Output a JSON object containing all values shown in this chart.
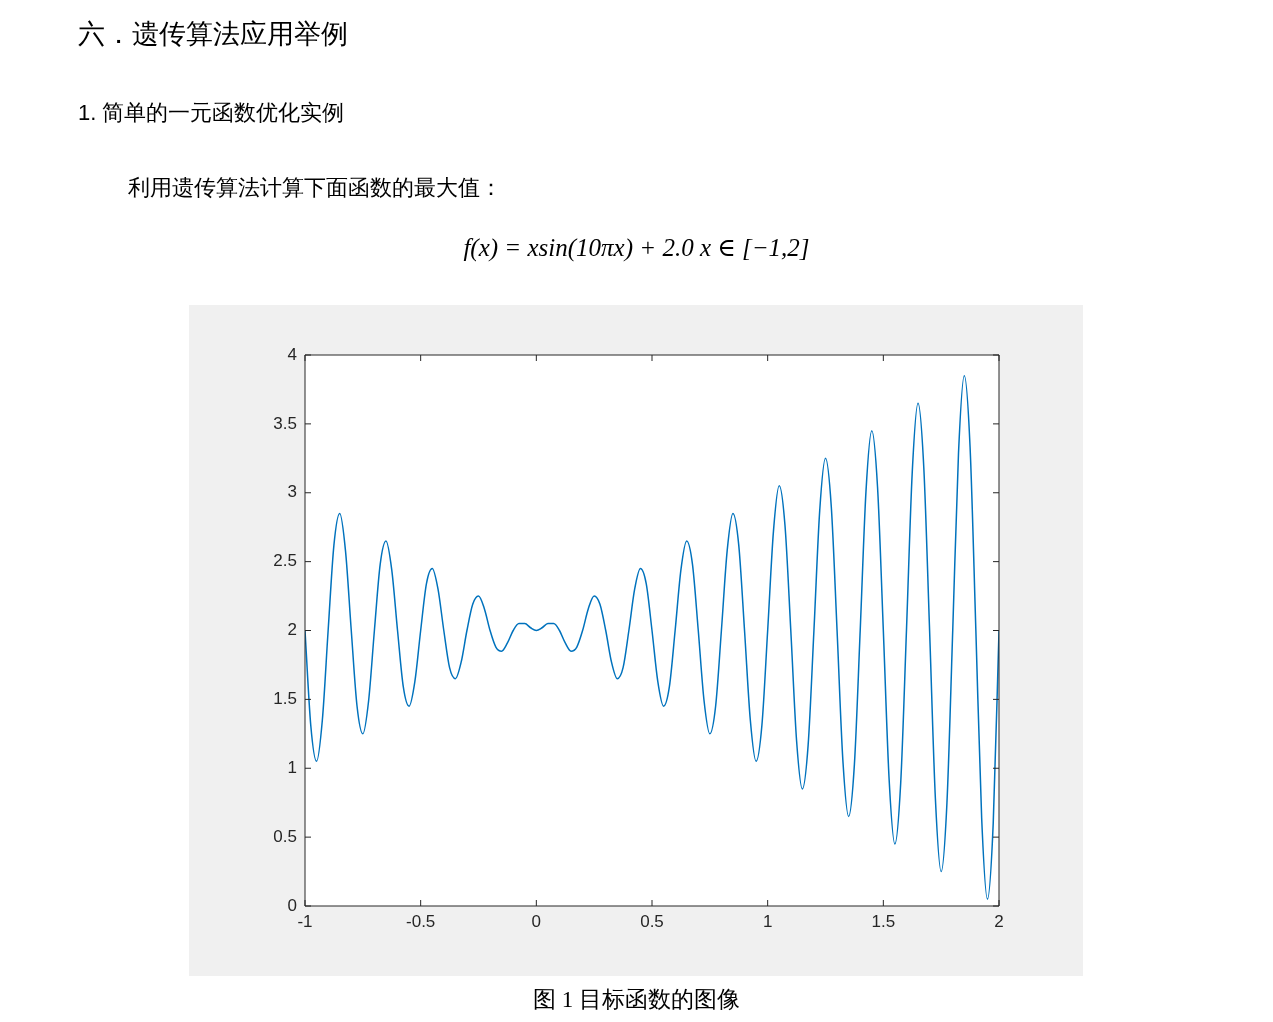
{
  "chart_data": {
    "type": "line",
    "title": "六．遗传算法应用举例",
    "subtitle": "1. 简单的一元函数优化实例",
    "annotations": [
      "利用遗传算法计算下面函数的最大值：",
      "f(x) = xsin(10πx) + 2.0 x ∈ [−1,2]",
      "图 1  目标函数的图像"
    ],
    "x": [
      -1,
      -0.975,
      -0.95,
      -0.925,
      -0.9,
      -0.875,
      -0.85,
      -0.825,
      -0.8,
      -0.775,
      -0.75,
      -0.725,
      -0.7,
      -0.675,
      -0.65,
      -0.625,
      -0.6,
      -0.575,
      -0.55,
      -0.525,
      -0.5,
      -0.475,
      -0.45,
      -0.425,
      -0.4,
      -0.375,
      -0.35,
      -0.325,
      -0.3,
      -0.275,
      -0.25,
      -0.225,
      -0.2,
      -0.175,
      -0.15,
      -0.125,
      -0.1,
      -0.075,
      -0.05,
      -0.025,
      0,
      0.025,
      0.05,
      0.075,
      0.1,
      0.125,
      0.15,
      0.175,
      0.2,
      0.225,
      0.25,
      0.275,
      0.3,
      0.325,
      0.35,
      0.375,
      0.4,
      0.425,
      0.45,
      0.475,
      0.5,
      0.525,
      0.55,
      0.575,
      0.6,
      0.625,
      0.65,
      0.675,
      0.7,
      0.725,
      0.75,
      0.775,
      0.8,
      0.825,
      0.85,
      0.875,
      0.9,
      0.925,
      0.95,
      0.975,
      1,
      1.025,
      1.05,
      1.075,
      1.1,
      1.125,
      1.15,
      1.175,
      1.2,
      1.225,
      1.25,
      1.275,
      1.3,
      1.325,
      1.35,
      1.375,
      1.4,
      1.425,
      1.45,
      1.475,
      1.5,
      1.525,
      1.55,
      1.575,
      1.6,
      1.625,
      1.65,
      1.675,
      1.7,
      1.725,
      1.75,
      1.775,
      1.8,
      1.825,
      1.85,
      1.875,
      1.9,
      1.925,
      1.95,
      1.975,
      2
    ],
    "series": [
      {
        "color": "#0072bd",
        "values": [
          2,
          1.31,
          1.05,
          1.35,
          2,
          2.62,
          2.85,
          2.58,
          2,
          1.45,
          1.25,
          1.49,
          2,
          2.48,
          2.65,
          2.44,
          2,
          1.59,
          1.45,
          1.63,
          2,
          2.34,
          2.45,
          2.3,
          2,
          1.73,
          1.65,
          1.77,
          2,
          2.19,
          2.25,
          2.16,
          2,
          1.88,
          1.85,
          1.91,
          2,
          2.05,
          2.05,
          2.02,
          2,
          2.02,
          2.05,
          2.05,
          2,
          1.91,
          1.85,
          1.88,
          2,
          2.16,
          2.25,
          2.19,
          2,
          1.77,
          1.65,
          1.73,
          2,
          2.3,
          2.45,
          2.34,
          2,
          1.63,
          1.45,
          1.59,
          2,
          2.44,
          2.65,
          2.48,
          2,
          1.49,
          1.25,
          1.45,
          2,
          2.58,
          2.85,
          2.62,
          2,
          1.35,
          1.05,
          1.31,
          2,
          2.72,
          3.05,
          2.76,
          2,
          1.2,
          0.85,
          1.17,
          2,
          2.87,
          3.25,
          2.9,
          2,
          1.06,
          0.65,
          1.03,
          2,
          3.01,
          3.45,
          3.04,
          2,
          0.92,
          0.45,
          0.89,
          2,
          3.15,
          3.65,
          3.18,
          2,
          0.78,
          0.25,
          0.75,
          2,
          3.29,
          3.85,
          3.33,
          2,
          0.64,
          0.05,
          0.6,
          2
        ]
      }
    ],
    "xlim": [
      -1,
      2
    ],
    "xticks": [
      -1,
      -0.5,
      0,
      0.5,
      1,
      1.5,
      2
    ],
    "ylim": [
      0,
      4
    ],
    "yticks": [
      0,
      0.5,
      1,
      1.5,
      2,
      2.5,
      3,
      3.5,
      4
    ],
    "marker": "none",
    "line_style": "solid"
  }
}
